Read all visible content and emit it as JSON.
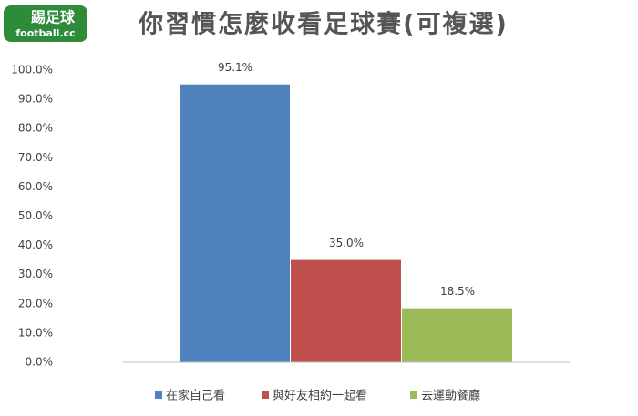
{
  "logo": {
    "text": "踢足球",
    "subtext": "football.cc"
  },
  "chart_data": {
    "type": "bar",
    "title": "你習慣怎麼收看足球賽(可複選)",
    "series": [
      {
        "name": "在家自己看",
        "color": "#4f81bd",
        "values": [
          95.1
        ],
        "value_labels": [
          "95.1%"
        ]
      },
      {
        "name": "與好友相約一起看",
        "color": "#c0504d",
        "values": [
          35.0
        ],
        "value_labels": [
          "35.0%"
        ]
      },
      {
        "name": "去運動餐廳",
        "color": "#9bbb59",
        "values": [
          18.5
        ],
        "value_labels": [
          "18.5%"
        ]
      }
    ],
    "ylim": [
      0,
      100
    ],
    "yticks": [
      {
        "value": 0,
        "label": "0.0%"
      },
      {
        "value": 10,
        "label": "10.0%"
      },
      {
        "value": 20,
        "label": "20.0%"
      },
      {
        "value": 30,
        "label": "30.0%"
      },
      {
        "value": 40,
        "label": "40.0%"
      },
      {
        "value": 50,
        "label": "50.0%"
      },
      {
        "value": 60,
        "label": "60.0%"
      },
      {
        "value": 70,
        "label": "70.0%"
      },
      {
        "value": 80,
        "label": "80.0%"
      },
      {
        "value": 90,
        "label": "90.0%"
      },
      {
        "value": 100,
        "label": "100.0%"
      }
    ],
    "grid": false,
    "legend": "bottom"
  }
}
